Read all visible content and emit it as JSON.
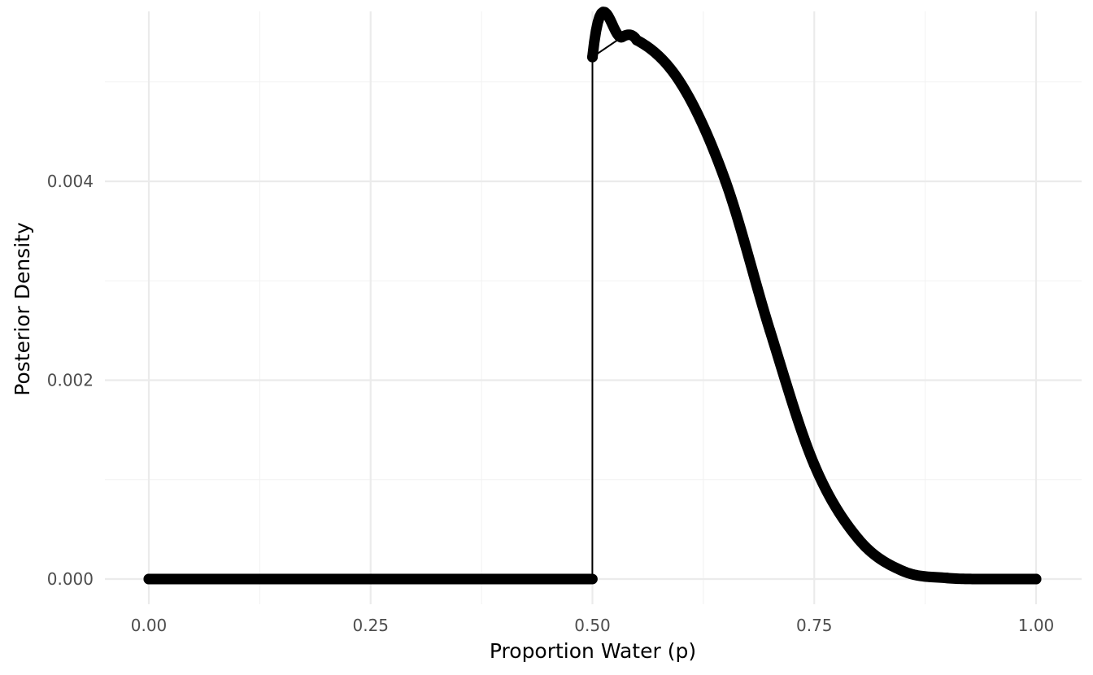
{
  "chart_data": {
    "type": "line",
    "title": "",
    "xlabel": "Proportion Water (p)",
    "ylabel": "Posterior Density",
    "xlim": [
      0,
      1
    ],
    "ylim": [
      0,
      0.0055
    ],
    "x_ticks": [
      0.0,
      0.25,
      0.5,
      0.75,
      1.0
    ],
    "x_tick_labels": [
      "0.00",
      "0.25",
      "0.50",
      "0.75",
      "1.00"
    ],
    "x_minor_ticks": [
      0.125,
      0.375,
      0.625,
      0.875
    ],
    "y_ticks": [
      0.0,
      0.002,
      0.004
    ],
    "y_tick_labels": [
      "0.000",
      "0.002",
      "0.004"
    ],
    "y_minor_ticks": [
      0.001,
      0.003,
      0.005
    ],
    "grid": true,
    "legend": "none",
    "colors": {
      "series": "#000000",
      "grid": "#ebebeb",
      "tick_text": "#4d4d4d"
    },
    "series": [
      {
        "style": "points-and-line",
        "x": [
          0.0,
          0.1,
          0.2,
          0.3,
          0.4,
          0.4999,
          0.5,
          0.533,
          0.55,
          0.6,
          0.65,
          0.7,
          0.75,
          0.8,
          0.85,
          0.9,
          0.95,
          1.0
        ],
        "values": [
          0.0,
          0.0,
          0.0,
          0.0,
          0.0,
          0.0,
          0.00525,
          0.00545,
          0.00542,
          0.00498,
          0.004,
          0.0025,
          0.00115,
          0.0004,
          8e-05,
          1e-05,
          0.0,
          0.0
        ]
      }
    ]
  }
}
